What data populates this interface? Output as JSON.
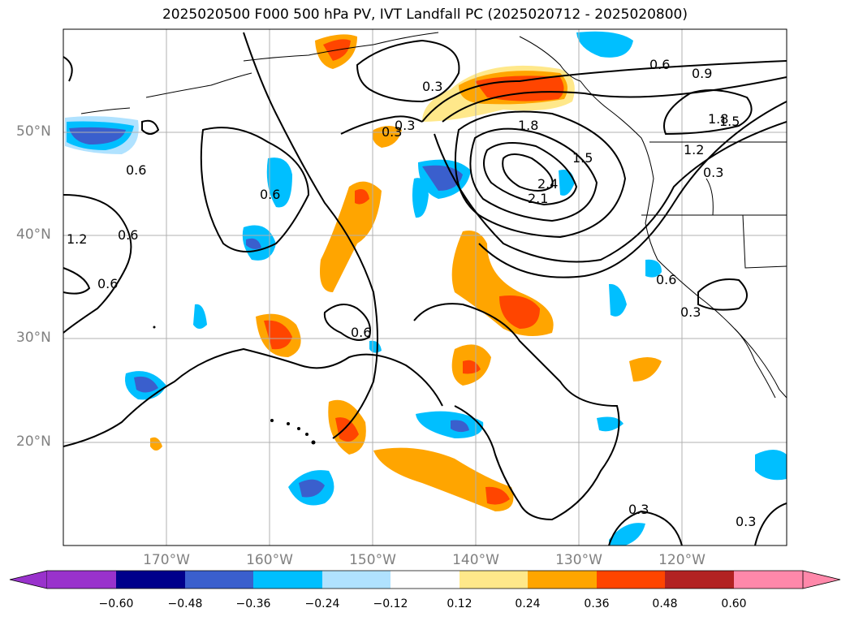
{
  "title": "2025020500 F000 500 hPa PV, IVT Landfall PC (2025020712 - 2025020800)",
  "lat_labels": [
    "50°N",
    "40°N",
    "30°N",
    "20°N"
  ],
  "lon_labels": [
    "170°W",
    "160°W",
    "150°W",
    "140°W",
    "130°W",
    "120°W"
  ],
  "contour_labels": [
    "0.3",
    "0.3",
    "0.6",
    "0.9",
    "1.8",
    "1.5",
    "1.5",
    "1.8",
    "2.4",
    "2.1",
    "1.2",
    "0.3",
    "0.6",
    "0.6",
    "0.6",
    "0.6",
    "1.2",
    "0.6",
    "0.6",
    "0.3",
    "0.3",
    "0.3",
    "0.3"
  ],
  "colorbar": {
    "ticks": [
      "−0.60",
      "−0.48",
      "−0.36",
      "−0.24",
      "−0.12",
      "0.12",
      "0.24",
      "0.36",
      "0.48",
      "0.60"
    ],
    "colors": [
      "#9932cc",
      "#00008b",
      "#3a5fcd",
      "#00bfff",
      "#b0e2ff",
      "#ffffff",
      "#ffe88a",
      "#ffa500",
      "#ff4500",
      "#b22222",
      "#ff88aa"
    ]
  },
  "colors": {
    "gridline": "#b0b0b0",
    "contour": "#000000",
    "tick_label": "#808080"
  }
}
